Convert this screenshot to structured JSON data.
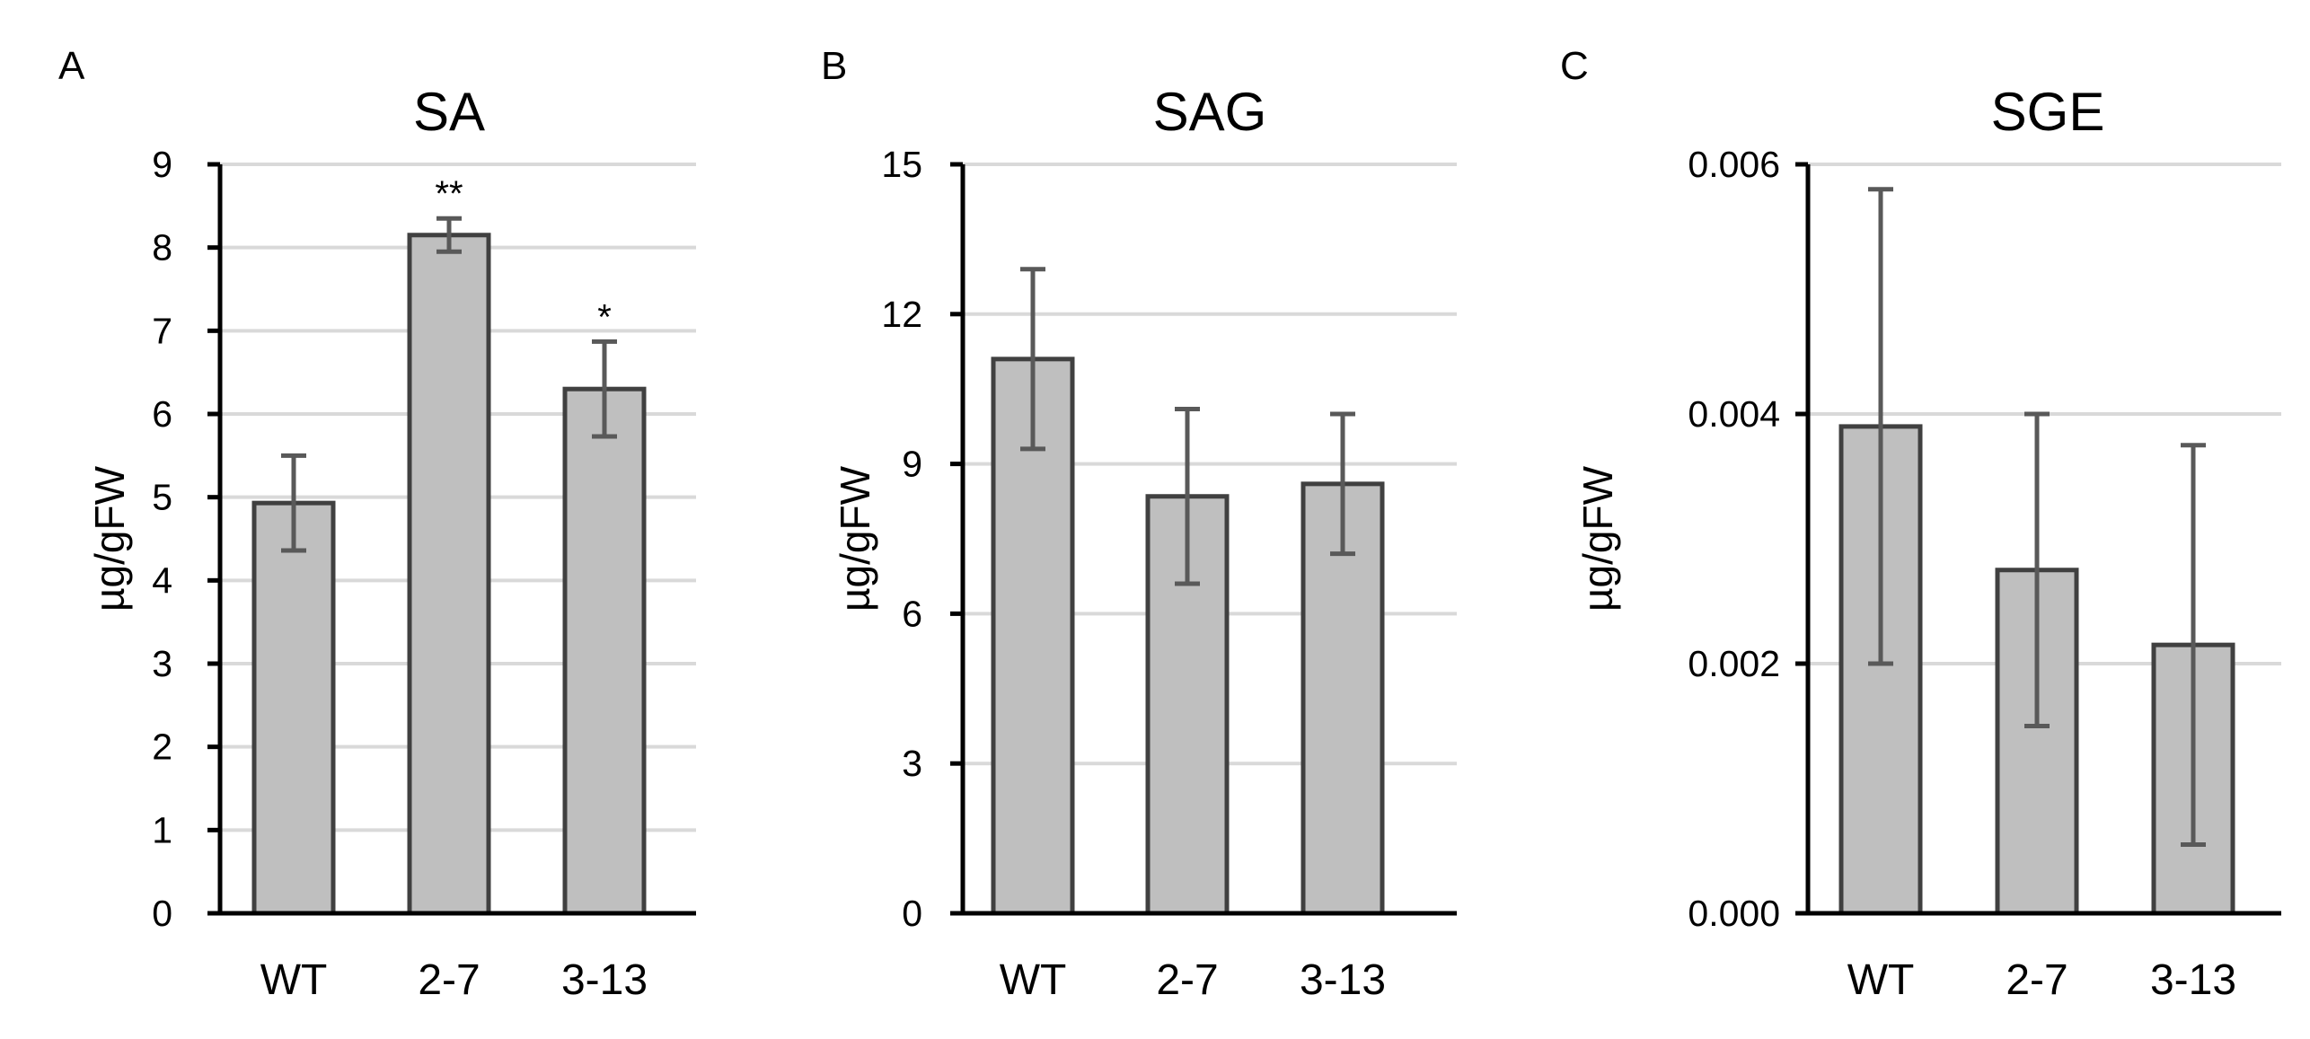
{
  "colors": {
    "bar_fill": "#bfbfbf",
    "bar_edge": "#404040",
    "error_bar": "#595959",
    "grid": "#d9d9d9",
    "axis": "#000000"
  },
  "chart_data": [
    {
      "panel": "A",
      "type": "bar",
      "title": "SA",
      "xlabel": "",
      "ylabel": "µg/gFW",
      "categories": [
        "WT",
        "2-7",
        "3-13"
      ],
      "values": [
        4.93,
        8.15,
        6.3
      ],
      "errors": [
        0.57,
        0.2,
        0.57
      ],
      "annotations": [
        "",
        "**",
        "*"
      ],
      "ylim": [
        0,
        9
      ],
      "yticks": [
        0,
        1,
        2,
        3,
        4,
        5,
        6,
        7,
        8,
        9
      ],
      "ytick_labels": [
        "0",
        "1",
        "2",
        "3",
        "4",
        "5",
        "6",
        "7",
        "8",
        "9"
      ],
      "grid": true
    },
    {
      "panel": "B",
      "type": "bar",
      "title": "SAG",
      "xlabel": "",
      "ylabel": "µg/gFW",
      "categories": [
        "WT",
        "2-7",
        "3-13"
      ],
      "values": [
        11.1,
        8.35,
        8.6
      ],
      "errors": [
        1.8,
        1.75,
        1.4
      ],
      "annotations": [
        "",
        "",
        ""
      ],
      "ylim": [
        0,
        15
      ],
      "yticks": [
        0,
        3,
        6,
        9,
        12,
        15
      ],
      "ytick_labels": [
        "0",
        "3",
        "6",
        "9",
        "12",
        "15"
      ],
      "grid": true
    },
    {
      "panel": "C",
      "type": "bar",
      "title": "SGE",
      "xlabel": "",
      "ylabel": "µg/gFW",
      "categories": [
        "WT",
        "2-7",
        "3-13"
      ],
      "values": [
        0.0039,
        0.00275,
        0.00215
      ],
      "errors": [
        0.0019,
        0.00125,
        0.0016
      ],
      "annotations": [
        "",
        "",
        ""
      ],
      "ylim": [
        0,
        0.006
      ],
      "yticks": [
        0,
        0.002,
        0.004,
        0.006
      ],
      "ytick_labels": [
        "0.000",
        "0.002",
        "0.004",
        "0.006"
      ],
      "grid": true
    }
  ]
}
